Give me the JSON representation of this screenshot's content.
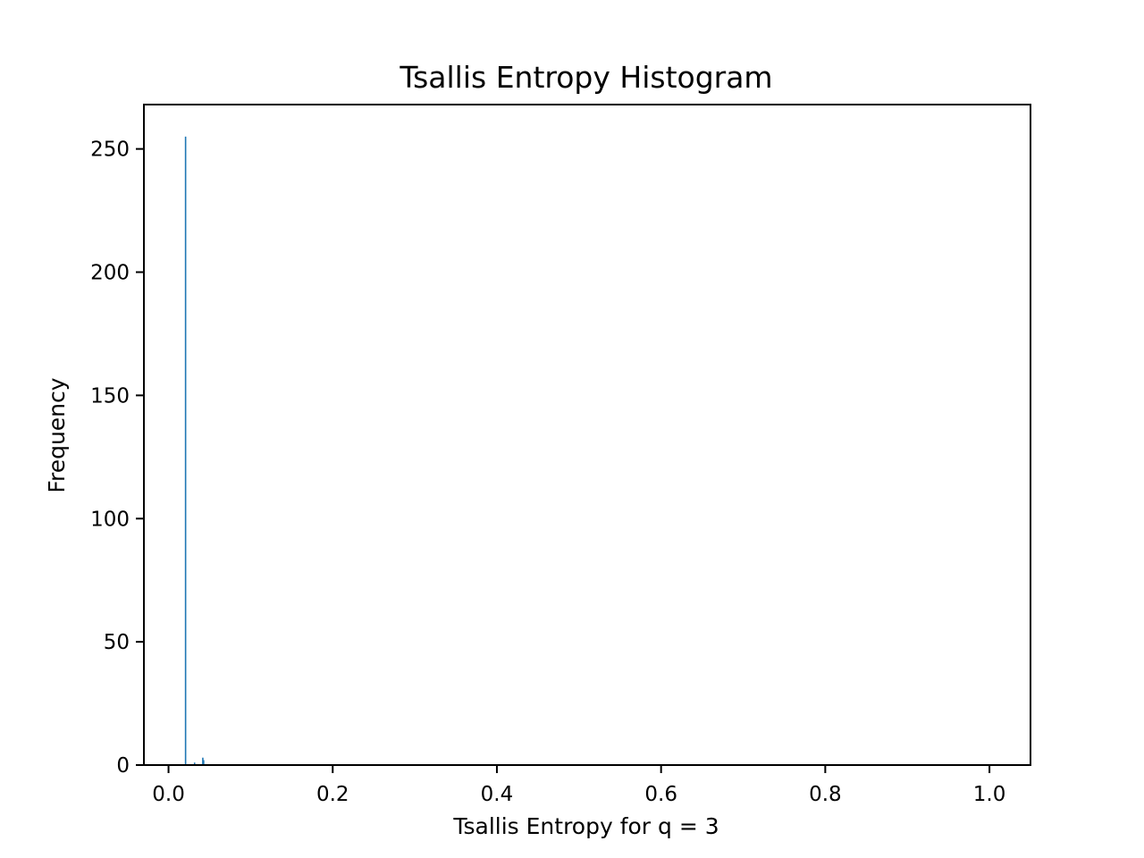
{
  "chart_data": {
    "type": "bar",
    "title": "Tsallis Entropy Histogram",
    "xlabel": "Tsallis Entropy for q = 3",
    "ylabel": "Frequency",
    "xlim": [
      -0.03,
      1.05
    ],
    "ylim": [
      0,
      268
    ],
    "xticks": [
      0.0,
      0.2,
      0.4,
      0.6,
      0.8,
      1.0
    ],
    "xtick_labels": [
      "0.0",
      "0.2",
      "0.4",
      "0.6",
      "0.8",
      "1.0"
    ],
    "yticks": [
      0,
      50,
      100,
      150,
      200,
      250
    ],
    "ytick_labels": [
      "0",
      "50",
      "100",
      "150",
      "200",
      "250"
    ],
    "grid": false,
    "bar_color": "#1f77b4",
    "bins": [
      {
        "x0": 0.0199,
        "x1": 0.0209,
        "count": 255
      },
      {
        "x0": 0.0309,
        "x1": 0.0319,
        "count": 1
      },
      {
        "x0": 0.0409,
        "x1": 0.0419,
        "count": 3
      },
      {
        "x0": 0.0419,
        "x1": 0.0429,
        "count": 2
      }
    ]
  }
}
